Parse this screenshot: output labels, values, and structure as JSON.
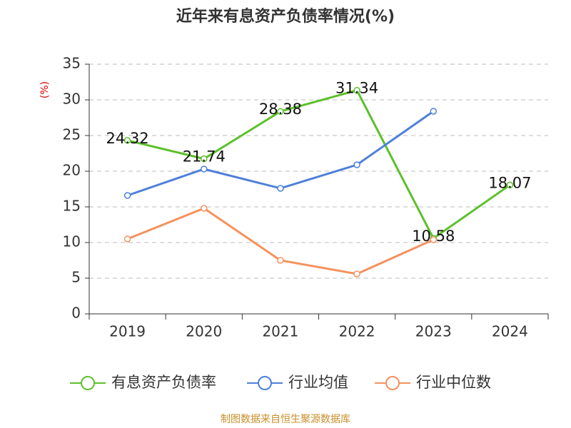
{
  "chart_data": {
    "type": "line",
    "title": "近年来有息资产负债率情况(%)",
    "y_label": "(%)",
    "source": "制图数据来自恒生聚源数据库",
    "categories": [
      "2019",
      "2020",
      "2021",
      "2022",
      "2023",
      "2024"
    ],
    "series": [
      {
        "name": "有息资产负债率",
        "color": "#5cc02a",
        "values": [
          24.32,
          21.74,
          28.38,
          31.34,
          10.58,
          18.07
        ],
        "show_labels": true
      },
      {
        "name": "行业均值",
        "color": "#4f80d8",
        "values": [
          16.6,
          20.3,
          17.6,
          20.9,
          28.4,
          null
        ],
        "show_labels": false
      },
      {
        "name": "行业中位数",
        "color": "#f5925f",
        "values": [
          10.5,
          14.8,
          7.5,
          5.6,
          10.4,
          null
        ],
        "show_labels": false
      }
    ],
    "ylim": [
      0,
      35
    ],
    "yticks": [
      0,
      5,
      10,
      15,
      20,
      25,
      30,
      35
    ],
    "grid": true,
    "legend": "bottom"
  }
}
